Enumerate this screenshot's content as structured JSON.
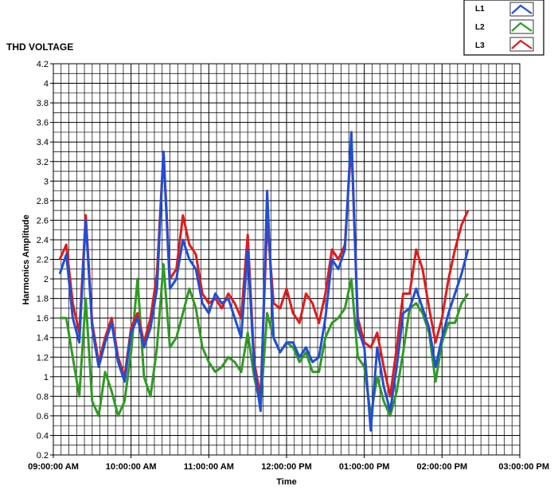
{
  "chart_data": {
    "type": "line",
    "title": "THD VOLTAGE",
    "xlabel": "Time",
    "ylabel": "Harmonics Amplitude",
    "xlim": [
      "09:00:00 AM",
      "03:00:00 PM"
    ],
    "ylim": [
      0.2,
      4.2
    ],
    "x_ticks": [
      "09:00:00 AM",
      "10:00:00 AM",
      "11:00:00 AM",
      "12:00:00 PM",
      "01:00:00 PM",
      "02:00:00 PM",
      "03:00:00 PM"
    ],
    "y_ticks": [
      "0.2",
      "0.4",
      "0.6",
      "0.8",
      "1",
      "1.2",
      "1.4",
      "1.6",
      "1.8",
      "2",
      "2.2",
      "2.4",
      "2.6",
      "2.8",
      "3",
      "3.2",
      "3.4",
      "3.6",
      "3.8",
      "4",
      "4.2"
    ],
    "grid": true,
    "legend_position": "top-right",
    "x": [
      "09:05",
      "09:10",
      "09:15",
      "09:20",
      "09:25",
      "09:30",
      "09:35",
      "09:40",
      "09:45",
      "09:50",
      "09:55",
      "10:00",
      "10:05",
      "10:10",
      "10:15",
      "10:20",
      "10:25",
      "10:30",
      "10:35",
      "10:40",
      "10:45",
      "10:50",
      "10:55",
      "11:00",
      "11:05",
      "11:10",
      "11:15",
      "11:20",
      "11:25",
      "11:30",
      "11:35",
      "11:40",
      "11:45",
      "11:50",
      "11:55",
      "12:00",
      "12:05",
      "12:10",
      "12:15",
      "12:20",
      "12:25",
      "12:30",
      "12:35",
      "12:40",
      "12:45",
      "12:50",
      "12:55",
      "13:00",
      "13:05",
      "13:10",
      "13:15",
      "13:20",
      "13:25",
      "13:30",
      "13:35",
      "13:40",
      "13:45",
      "13:50",
      "13:55",
      "14:00",
      "14:05",
      "14:10",
      "14:15",
      "14:20"
    ],
    "series": [
      {
        "name": "L1",
        "color": "#1f4ed8",
        "values": [
          2.05,
          2.25,
          1.6,
          1.35,
          2.6,
          1.5,
          1.1,
          1.35,
          1.55,
          1.15,
          0.95,
          1.45,
          1.6,
          1.3,
          1.5,
          1.9,
          3.3,
          1.9,
          2.0,
          2.4,
          2.2,
          2.1,
          1.75,
          1.65,
          1.85,
          1.75,
          1.8,
          1.6,
          1.4,
          2.3,
          1.1,
          0.65,
          2.9,
          1.4,
          1.25,
          1.35,
          1.35,
          1.2,
          1.3,
          1.15,
          1.2,
          1.6,
          2.2,
          2.1,
          2.3,
          3.5,
          1.5,
          1.3,
          0.45,
          1.3,
          0.9,
          0.65,
          1.1,
          1.65,
          1.7,
          1.9,
          1.7,
          1.5,
          1.1,
          1.4,
          1.65,
          1.85,
          2.05,
          2.3
        ]
      },
      {
        "name": "L2",
        "color": "#2f9a22",
        "values": [
          1.6,
          1.6,
          1.2,
          0.8,
          1.8,
          0.75,
          0.6,
          1.05,
          0.85,
          0.6,
          0.75,
          1.25,
          2.0,
          1.0,
          0.8,
          1.3,
          2.15,
          1.3,
          1.4,
          1.65,
          1.9,
          1.7,
          1.3,
          1.15,
          1.05,
          1.1,
          1.2,
          1.15,
          1.05,
          1.45,
          1.0,
          0.7,
          1.65,
          1.4,
          1.25,
          1.35,
          1.3,
          1.15,
          1.25,
          1.05,
          1.05,
          1.4,
          1.55,
          1.6,
          1.7,
          2.0,
          1.2,
          1.1,
          0.6,
          1.0,
          0.75,
          0.6,
          0.85,
          1.25,
          1.7,
          1.75,
          1.65,
          1.45,
          0.95,
          1.35,
          1.55,
          1.55,
          1.75,
          1.85
        ]
      },
      {
        "name": "L3",
        "color": "#e01b1b",
        "values": [
          2.2,
          2.35,
          1.75,
          1.45,
          2.65,
          1.55,
          1.15,
          1.4,
          1.6,
          1.2,
          1.0,
          1.5,
          1.65,
          1.35,
          1.6,
          2.05,
          3.3,
          2.0,
          2.1,
          2.65,
          2.35,
          2.25,
          1.85,
          1.75,
          1.8,
          1.7,
          1.85,
          1.75,
          1.6,
          2.45,
          1.15,
          0.8,
          2.6,
          1.75,
          1.7,
          1.9,
          1.65,
          1.55,
          1.85,
          1.75,
          1.55,
          1.85,
          2.3,
          2.2,
          2.35,
          3.4,
          1.6,
          1.35,
          1.3,
          1.45,
          1.1,
          0.8,
          1.3,
          1.85,
          1.85,
          2.3,
          2.1,
          1.7,
          1.35,
          1.6,
          2.0,
          2.3,
          2.55,
          2.7
        ]
      }
    ]
  }
}
